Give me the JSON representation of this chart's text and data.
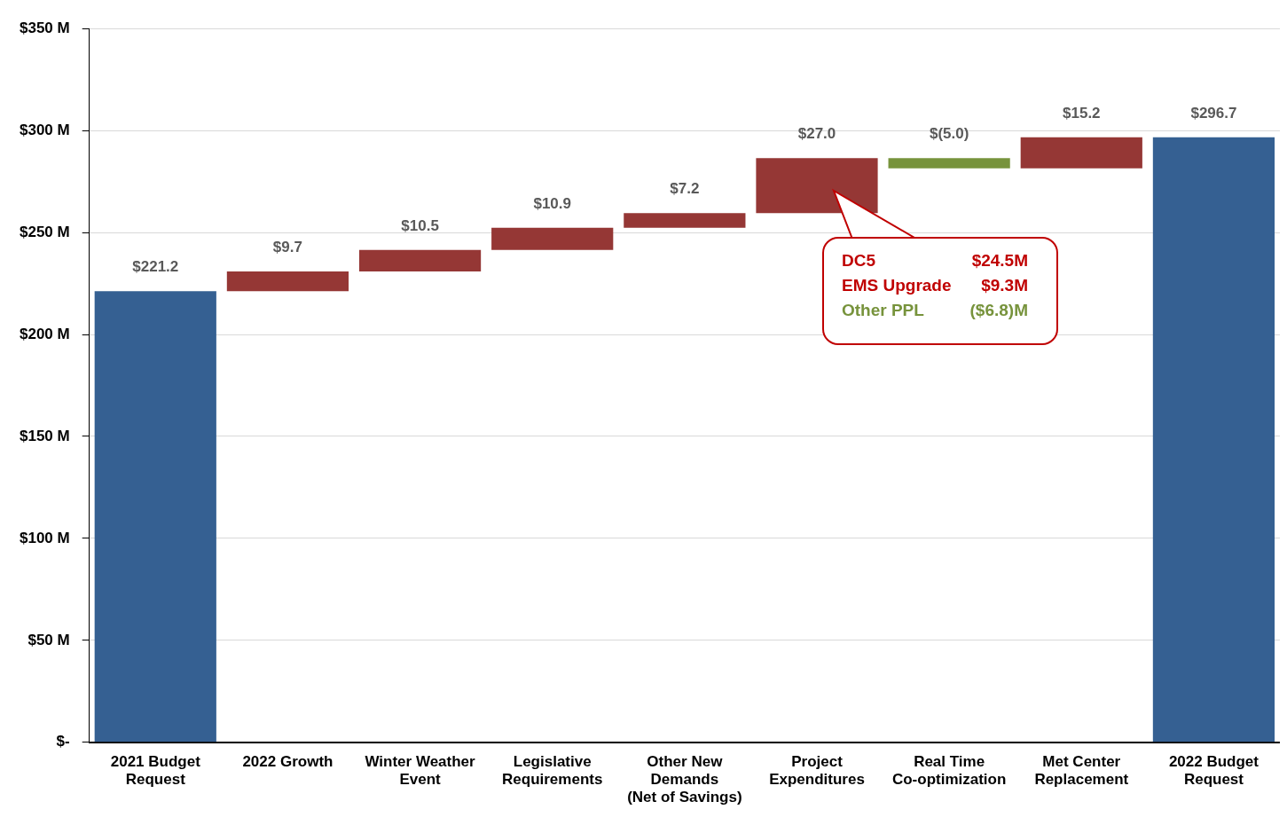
{
  "chart_data": {
    "type": "bar",
    "categories": [
      "2021 Budget\nRequest",
      "2022 Growth",
      "Winter Weather\nEvent",
      "Legislative\nRequirements",
      "Other New\nDemands\n(Net of Savings)",
      "Project\nExpenditures",
      "Real Time\nCo-optimization",
      "Met Center\nReplacement",
      "2022 Budget\nRequest"
    ],
    "values": [
      221.2,
      9.7,
      10.5,
      10.9,
      7.2,
      27.0,
      -5.0,
      15.2,
      296.7
    ],
    "base": [
      0,
      221.2,
      230.9,
      241.4,
      252.3,
      259.5,
      286.5,
      281.5,
      0
    ],
    "colors": [
      "#356092",
      "#953735",
      "#953735",
      "#953735",
      "#953735",
      "#953735",
      "#77933c",
      "#953735",
      "#356092"
    ],
    "value_labels": [
      "$221.2",
      "$9.7",
      "$10.5",
      "$10.9",
      "$7.2",
      "$27.0",
      "$(5.0)",
      "$15.2",
      "$296.7"
    ],
    "ylim": [
      0,
      350
    ],
    "yticks": [
      {
        "value": 0,
        "label": "$-"
      },
      {
        "value": 50,
        "label": "$50 M"
      },
      {
        "value": 100,
        "label": "$100 M"
      },
      {
        "value": 150,
        "label": "$150 M"
      },
      {
        "value": 200,
        "label": "$200 M"
      },
      {
        "value": 250,
        "label": "$250 M"
      },
      {
        "value": 300,
        "label": "$300 M"
      },
      {
        "value": 350,
        "label": "$350 M"
      }
    ],
    "grid": "y",
    "legend": false,
    "annotations": [
      "DC5",
      "$24.5M",
      "EMS Upgrade",
      "$9.3M",
      "Other PPL",
      "($6.8)M"
    ]
  }
}
